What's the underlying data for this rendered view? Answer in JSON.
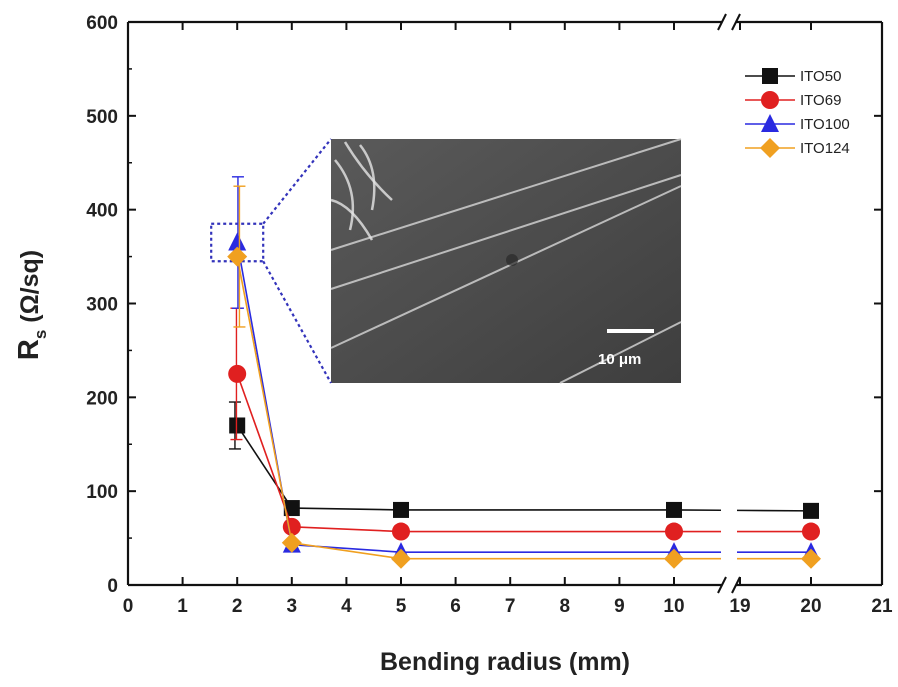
{
  "chart_data": {
    "type": "line",
    "xlabel": "Bending radius (mm)",
    "ylabel_main": "R",
    "ylabel_sub": "s",
    "ylabel_rest": " (Ω/sq)",
    "x_segments": [
      {
        "range": [
          0,
          10
        ],
        "ticks": [
          "0",
          "1",
          "2",
          "3",
          "4",
          "5",
          "6",
          "7",
          "8",
          "9",
          "10"
        ]
      },
      {
        "range": [
          19,
          21
        ],
        "ticks": [
          "19",
          "20",
          "21"
        ]
      }
    ],
    "x_break_between": [
      10,
      19
    ],
    "ylim": [
      0,
      600
    ],
    "yticks": [
      "0",
      "100",
      "200",
      "300",
      "400",
      "500",
      "600"
    ],
    "grid": false,
    "legend_position": "top-right",
    "x": [
      2,
      3,
      5,
      10,
      20
    ],
    "series": [
      {
        "name": "ITO50",
        "marker": "square",
        "color": "#111111",
        "values": [
          170,
          82,
          80,
          80,
          79
        ],
        "err_plus": [
          25,
          0,
          0,
          0,
          0
        ],
        "err_minus": [
          25,
          0,
          0,
          0,
          0
        ]
      },
      {
        "name": "ITO69",
        "marker": "circle",
        "color": "#e02020",
        "values": [
          225,
          62,
          57,
          57,
          57
        ],
        "err_plus": [
          70,
          0,
          0,
          0,
          0
        ],
        "err_minus": [
          70,
          0,
          0,
          0,
          0
        ]
      },
      {
        "name": "ITO100",
        "marker": "triangle",
        "color": "#2a2ae0",
        "values": [
          365,
          43,
          35,
          35,
          35
        ],
        "err_plus": [
          70,
          0,
          0,
          0,
          0
        ],
        "err_minus": [
          70,
          0,
          0,
          0,
          0
        ]
      },
      {
        "name": "ITO124",
        "marker": "diamond",
        "color": "#f0a020",
        "values": [
          350,
          45,
          28,
          28,
          28
        ],
        "err_plus": [
          75,
          0,
          0,
          0,
          0
        ],
        "err_minus": [
          75,
          0,
          0,
          0,
          0
        ]
      }
    ],
    "inset": {
      "description_marker": "SEM micrograph",
      "scale_bar_label": "10 μm",
      "zoom_box_around_x": 2,
      "zoom_box_y_range": [
        345,
        385
      ]
    }
  }
}
